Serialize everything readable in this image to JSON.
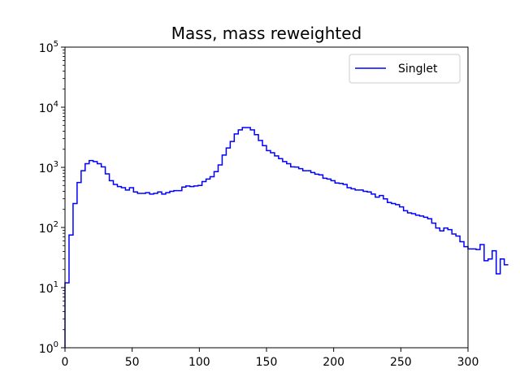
{
  "chart_data": {
    "type": "histogram",
    "title": "Mass, mass reweighted",
    "xlabel": "",
    "ylabel": "",
    "xlim": [
      0,
      300
    ],
    "ylim": [
      1,
      100000
    ],
    "yscale": "log",
    "x_ticks": [
      "0",
      "50",
      "100",
      "150",
      "200",
      "250",
      "300"
    ],
    "y_ticks": [
      {
        "base": "10",
        "exp": "0"
      },
      {
        "base": "10",
        "exp": "1"
      },
      {
        "base": "10",
        "exp": "2"
      },
      {
        "base": "10",
        "exp": "3"
      },
      {
        "base": "10",
        "exp": "4"
      },
      {
        "base": "10",
        "exp": "5"
      }
    ],
    "legend": {
      "position": "top-right"
    },
    "bin_width": 3,
    "series": [
      {
        "name": "Singlet",
        "color": "#0000ff",
        "values": [
          12,
          75,
          250,
          560,
          880,
          1150,
          1300,
          1250,
          1150,
          1020,
          780,
          600,
          520,
          480,
          460,
          420,
          460,
          390,
          370,
          370,
          380,
          360,
          370,
          390,
          360,
          380,
          400,
          410,
          410,
          470,
          490,
          480,
          490,
          500,
          580,
          640,
          700,
          850,
          1100,
          1600,
          2100,
          2700,
          3600,
          4200,
          4600,
          4600,
          4200,
          3500,
          2800,
          2300,
          1900,
          1750,
          1550,
          1400,
          1250,
          1150,
          1020,
          1010,
          950,
          880,
          880,
          820,
          770,
          750,
          660,
          640,
          600,
          550,
          540,
          520,
          460,
          440,
          420,
          420,
          400,
          390,
          360,
          320,
          340,
          300,
          260,
          250,
          240,
          220,
          190,
          175,
          170,
          160,
          155,
          148,
          140,
          118,
          98,
          88,
          98,
          92,
          78,
          72,
          58,
          48,
          44,
          44,
          43,
          52,
          28,
          30,
          41,
          17,
          30,
          24
        ]
      }
    ]
  }
}
